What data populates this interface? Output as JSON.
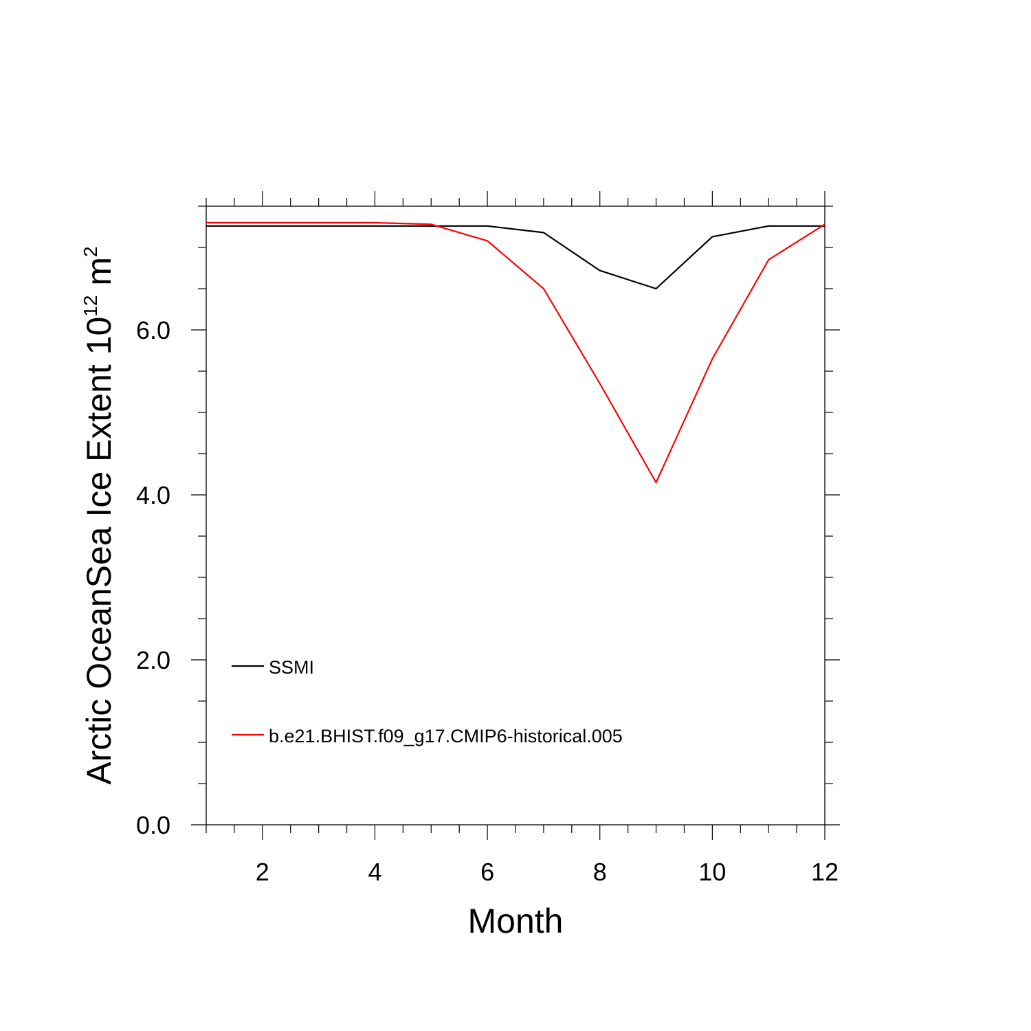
{
  "chart_data": {
    "type": "line",
    "x": [
      1,
      2,
      3,
      4,
      5,
      6,
      7,
      8,
      9,
      10,
      11,
      12
    ],
    "xlabel": "Month",
    "ylabel": "Arctic OceanSea Ice Extent 10",
    "ylabel_sup": "12",
    "ylabel_unit": "m",
    "ylabel_unit_sup": "2",
    "xlim": [
      1,
      12
    ],
    "ylim": [
      0,
      7.5
    ],
    "xticks": [
      2,
      4,
      6,
      8,
      10,
      12
    ],
    "xtick_labels": [
      "2",
      "4",
      "6",
      "8",
      "10",
      "12"
    ],
    "yticks": [
      0,
      2,
      4,
      6
    ],
    "ytick_labels": [
      "0.0",
      "2.0",
      "4.0",
      "6.0"
    ],
    "grid": false,
    "legend_position": "bottom-left",
    "series": [
      {
        "name": "SSMI",
        "color": "#000000",
        "values": [
          7.26,
          7.26,
          7.26,
          7.26,
          7.26,
          7.26,
          7.18,
          6.72,
          6.5,
          7.13,
          7.26,
          7.26
        ]
      },
      {
        "name": "b.e21.BHIST.f09_g17.CMIP6-historical.005",
        "color": "#ff0000",
        "values": [
          7.3,
          7.3,
          7.3,
          7.3,
          7.28,
          7.08,
          6.5,
          5.35,
          4.15,
          5.65,
          6.85,
          7.28
        ]
      }
    ]
  }
}
